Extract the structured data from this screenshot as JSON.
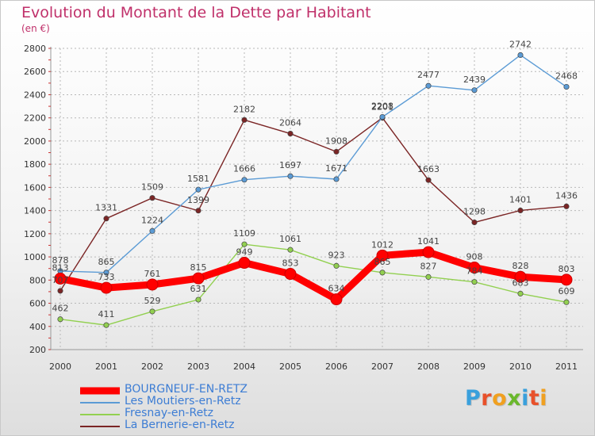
{
  "title": "Evolution du Montant de la Dette par Habitant",
  "subtitle": "(en €)",
  "logo": {
    "text": "Proxiti",
    "colors": [
      "#3aa0dc",
      "#e8502a",
      "#f0a020",
      "#6ab82c",
      "#3aa0dc",
      "#e8502a",
      "#f0a020"
    ]
  },
  "chart_data": {
    "type": "line",
    "title": "Evolution du Montant de la Dette par Habitant",
    "subtitle": "(en €)",
    "xlabel": "",
    "ylabel": "",
    "x": [
      "2000",
      "2001",
      "2002",
      "2003",
      "2004",
      "2005",
      "2006",
      "2007",
      "2008",
      "2009",
      "2010",
      "2011"
    ],
    "ylim": [
      200,
      2800
    ],
    "yticks": [
      200,
      400,
      600,
      800,
      1000,
      1200,
      1400,
      1600,
      1800,
      2000,
      2200,
      2400,
      2600,
      2800
    ],
    "grid": true,
    "legend_position": "bottom-left",
    "series": [
      {
        "name": "BOURGNEUF-EN-RETZ",
        "color": "#ff0000",
        "values": [
          813,
          733,
          761,
          815,
          949,
          853,
          634,
          1012,
          1041,
          908,
          828,
          803
        ],
        "labels": [
          "813",
          "733",
          "761",
          "815",
          "949",
          "853",
          "634",
          "1012",
          "1041",
          "908",
          "828",
          "803"
        ]
      },
      {
        "name": "Les Moutiers-en-Retz",
        "color": "#5b9bd5",
        "values": [
          878,
          865,
          1224,
          1581,
          1666,
          1697,
          1671,
          2208,
          2477,
          2439,
          2742,
          2468
        ],
        "labels": [
          "878",
          "865",
          "1224",
          "1581",
          "1666",
          "1697",
          "1671",
          "2208",
          "2477",
          "2439",
          "2742",
          "2468"
        ]
      },
      {
        "name": "Fresnay-en-Retz",
        "color": "#92d050",
        "values": [
          462,
          411,
          529,
          631,
          1109,
          1061,
          923,
          865,
          827,
          784,
          683,
          609
        ],
        "labels": [
          "462",
          "411",
          "529",
          "631",
          "1109",
          "1061",
          "923",
          "865",
          "827",
          "784",
          "683",
          "609"
        ]
      },
      {
        "name": "La Bernerie-en-Retz",
        "color": "#7b2525",
        "values": [
          707,
          1331,
          1509,
          1399,
          2182,
          2064,
          1908,
          2201,
          1663,
          1298,
          1401,
          1436
        ],
        "labels": [
          "707",
          "1331",
          "1509",
          "1399",
          "2182",
          "2064",
          "1908",
          "2201",
          "1663",
          "1298",
          "1401",
          "1436"
        ]
      }
    ]
  }
}
